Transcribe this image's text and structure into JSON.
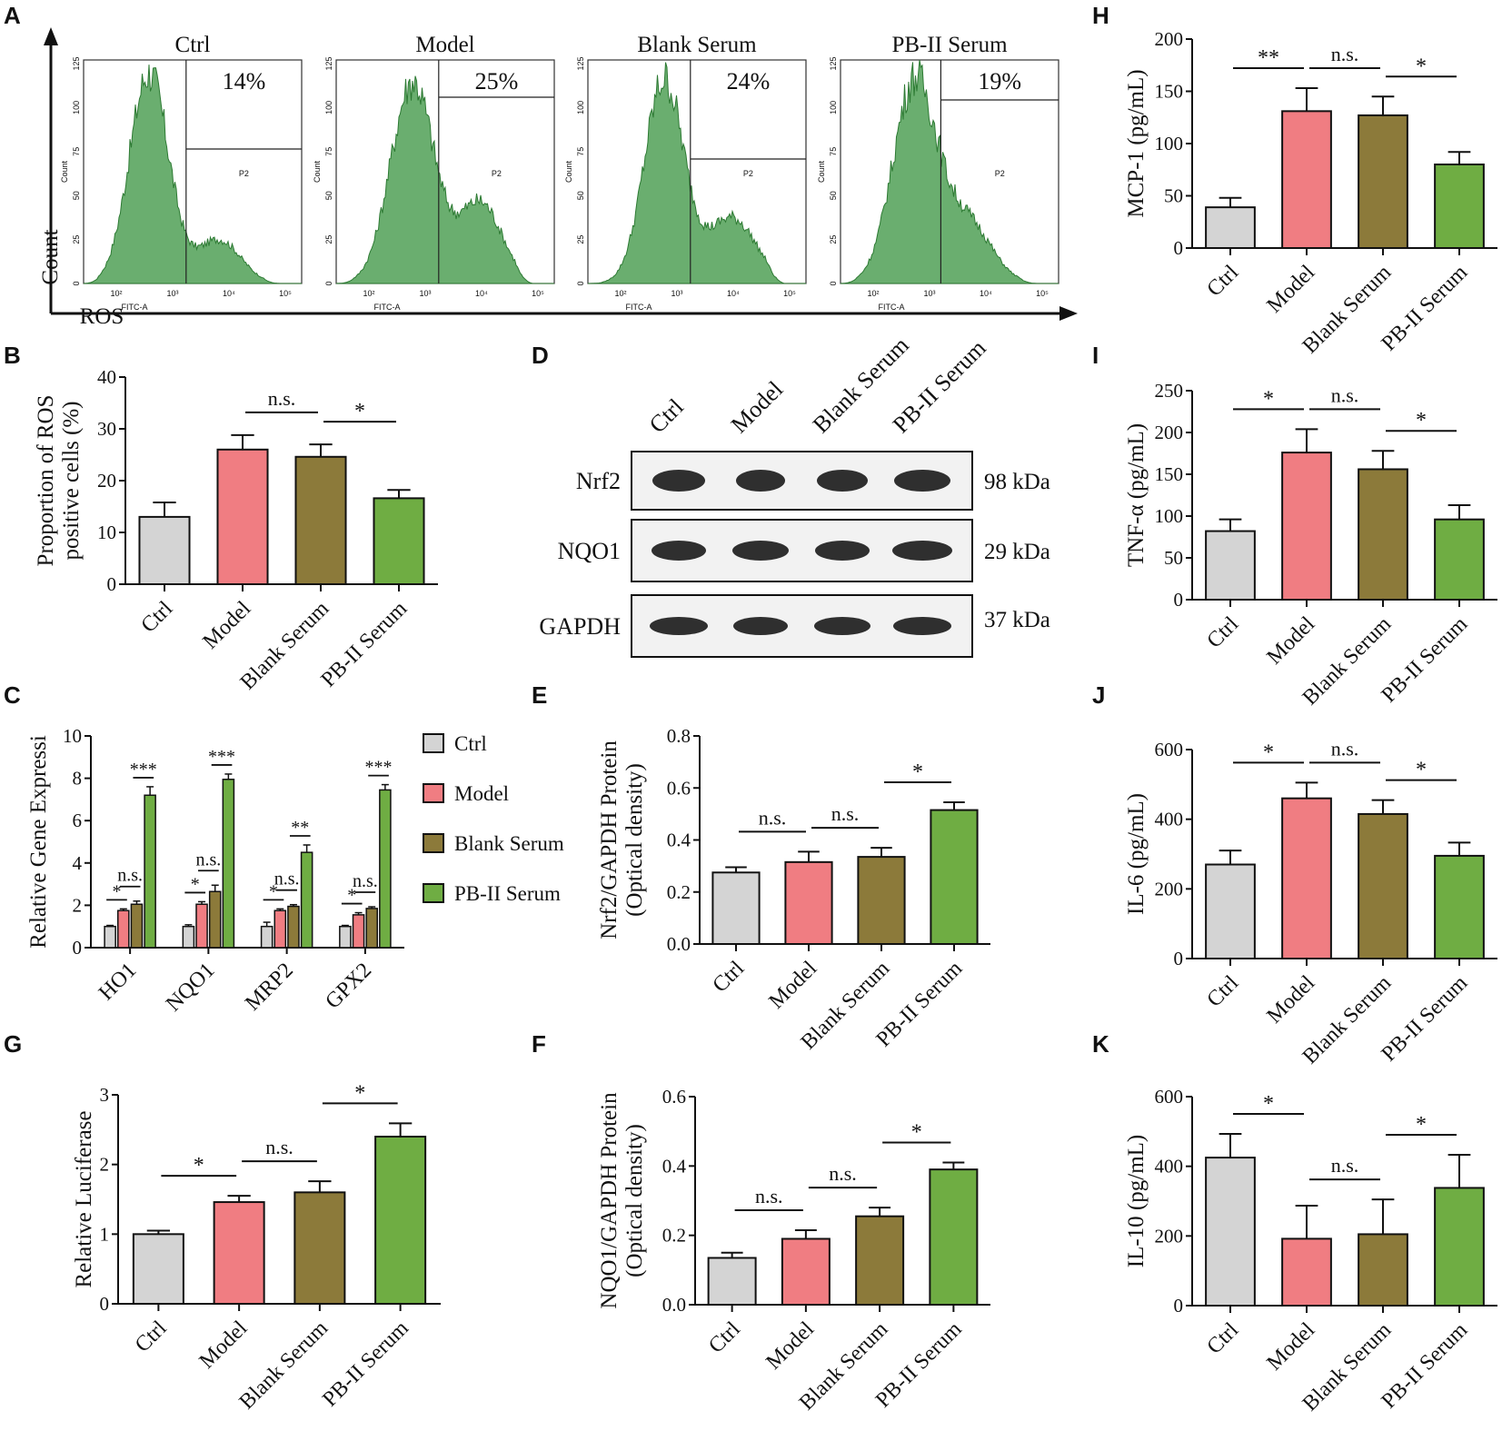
{
  "colors": {
    "ctrl": "#d4d4d4",
    "model": "#f07d82",
    "blank": "#8c7a3a",
    "pb": "#6fad43",
    "hist": "#6aae6f",
    "histline": "#2d7a33"
  },
  "groups": [
    "Ctrl",
    "Model",
    "Blank Serum",
    "PB-II Serum"
  ],
  "panel_labels": [
    "A",
    "B",
    "C",
    "D",
    "E",
    "F",
    "G",
    "H",
    "I",
    "J",
    "K"
  ],
  "flow": {
    "x_axis_label": "ROS",
    "y_axis_label": "Count",
    "subplot_xlabel": "FITC-A",
    "subplot_ylabel": "Count",
    "gate_label": "P2",
    "y_ticks": [
      "125",
      "100",
      "75",
      "50",
      "25",
      "0"
    ],
    "x_ticks": [
      "10²",
      "10³",
      "10⁴",
      "10⁵"
    ],
    "plots": [
      {
        "title": "Ctrl",
        "percent": "14%"
      },
      {
        "title": "Model",
        "percent": "25%"
      },
      {
        "title": "Blank Serum",
        "percent": "24%"
      },
      {
        "title": "PB-II Serum",
        "percent": "19%"
      }
    ]
  },
  "western": {
    "proteins": [
      {
        "name": "Nrf2",
        "size": "98 kDa"
      },
      {
        "name": "NQO1",
        "size": "29 kDa"
      },
      {
        "name": "GAPDH",
        "size": "37 kDa"
      }
    ],
    "lanes": [
      "Ctrl",
      "Model",
      "Blank Serum",
      "PB-II Serum"
    ]
  },
  "chart_data": [
    {
      "id": "B",
      "type": "bar",
      "title": "",
      "ylabel": [
        "Proportion of ROS",
        "positive cells (%)"
      ],
      "categories": [
        "Ctrl",
        "Model",
        "Blank Serum",
        "PB-II Serum"
      ],
      "values": [
        13,
        26,
        24.6,
        16.6
      ],
      "errors": [
        2.8,
        2.8,
        2.4,
        1.6
      ],
      "ylim": [
        0,
        40
      ],
      "yticks": [
        "0",
        "10",
        "20",
        "30",
        "40"
      ],
      "significance": [
        {
          "from": 1,
          "to": 2,
          "label": "n.s."
        },
        {
          "from": 2,
          "to": 3,
          "label": "*"
        }
      ]
    },
    {
      "id": "C",
      "type": "bar",
      "ylabel": [
        "Relative Gene Expressi"
      ],
      "categories": [
        "HO1",
        "NQO1",
        "MRP2",
        "GPX2"
      ],
      "series": [
        {
          "name": "Ctrl",
          "values": [
            1,
            1,
            1,
            1
          ],
          "errors": [
            0.05,
            0.08,
            0.2,
            0.05
          ]
        },
        {
          "name": "Model",
          "values": [
            1.75,
            2.05,
            1.75,
            1.55
          ],
          "errors": [
            0.08,
            0.12,
            0.08,
            0.1
          ]
        },
        {
          "name": "Blank Serum",
          "values": [
            2.05,
            2.65,
            1.95,
            1.85
          ],
          "errors": [
            0.15,
            0.3,
            0.08,
            0.08
          ]
        },
        {
          "name": "PB-II Serum",
          "values": [
            7.2,
            7.95,
            4.5,
            7.45
          ],
          "errors": [
            0.4,
            0.25,
            0.35,
            0.25
          ]
        }
      ],
      "legend": [
        "Ctrl",
        "Model",
        "Blank Serum",
        "PB-II Serum"
      ],
      "ylim": [
        0,
        10
      ],
      "yticks": [
        "0",
        "2",
        "4",
        "6",
        "8",
        "10"
      ],
      "significance": [
        {
          "cat": 0,
          "pair": [
            0,
            1
          ],
          "label": "*"
        },
        {
          "cat": 0,
          "pair": [
            1,
            2
          ],
          "label": "n.s."
        },
        {
          "cat": 0,
          "pair": [
            2,
            3
          ],
          "label": "***"
        },
        {
          "cat": 1,
          "pair": [
            0,
            1
          ],
          "label": "*"
        },
        {
          "cat": 1,
          "pair": [
            1,
            2
          ],
          "label": "n.s."
        },
        {
          "cat": 1,
          "pair": [
            2,
            3
          ],
          "label": "***"
        },
        {
          "cat": 2,
          "pair": [
            0,
            1
          ],
          "label": "*"
        },
        {
          "cat": 2,
          "pair": [
            1,
            2
          ],
          "label": "n.s."
        },
        {
          "cat": 2,
          "pair": [
            2,
            3
          ],
          "label": "**"
        },
        {
          "cat": 3,
          "pair": [
            0,
            1
          ],
          "label": "*"
        },
        {
          "cat": 3,
          "pair": [
            1,
            2
          ],
          "label": "n.s."
        },
        {
          "cat": 3,
          "pair": [
            2,
            3
          ],
          "label": "***"
        }
      ]
    },
    {
      "id": "E",
      "type": "bar",
      "ylabel": [
        "Nrf2/GAPDH Protein",
        "(Optical density)"
      ],
      "categories": [
        "Ctrl",
        "Model",
        "Blank Serum",
        "PB-II Serum"
      ],
      "values": [
        0.275,
        0.315,
        0.335,
        0.515
      ],
      "errors": [
        0.02,
        0.04,
        0.035,
        0.03
      ],
      "ylim": [
        0,
        0.8
      ],
      "yticks": [
        "0.0",
        "0.2",
        "0.4",
        "0.6",
        "0.8"
      ],
      "significance": [
        {
          "from": 0,
          "to": 1,
          "label": "n.s."
        },
        {
          "from": 1,
          "to": 2,
          "label": "n.s."
        },
        {
          "from": 2,
          "to": 3,
          "label": "*"
        }
      ]
    },
    {
      "id": "F",
      "type": "bar",
      "ylabel": [
        "NQO1/GAPDH Protein",
        "(Optical density)"
      ],
      "categories": [
        "Ctrl",
        "Model",
        "Blank Serum",
        "PB-II Serum"
      ],
      "values": [
        0.135,
        0.19,
        0.255,
        0.39
      ],
      "errors": [
        0.015,
        0.025,
        0.025,
        0.02
      ],
      "ylim": [
        0,
        0.6
      ],
      "yticks": [
        "0.0",
        "0.2",
        "0.4",
        "0.6"
      ],
      "significance": [
        {
          "from": 0,
          "to": 1,
          "label": "n.s."
        },
        {
          "from": 1,
          "to": 2,
          "label": "n.s."
        },
        {
          "from": 2,
          "to": 3,
          "label": "*"
        }
      ]
    },
    {
      "id": "G",
      "type": "bar",
      "ylabel": [
        "Relative Luciferase"
      ],
      "categories": [
        "Ctrl",
        "Model",
        "Blank Serum",
        "PB-II Serum"
      ],
      "values": [
        1.0,
        1.46,
        1.6,
        2.4
      ],
      "errors": [
        0.05,
        0.09,
        0.16,
        0.19
      ],
      "ylim": [
        0,
        3
      ],
      "yticks": [
        "0",
        "1",
        "2",
        "3"
      ],
      "significance": [
        {
          "from": 0,
          "to": 1,
          "label": "*"
        },
        {
          "from": 1,
          "to": 2,
          "label": "n.s."
        },
        {
          "from": 2,
          "to": 3,
          "label": "*"
        }
      ]
    },
    {
      "id": "H",
      "type": "bar",
      "ylabel": [
        "MCP-1 (pg/mL)"
      ],
      "categories": [
        "Ctrl",
        "Model",
        "Blank Serum",
        "PB-II Serum"
      ],
      "values": [
        39,
        131,
        127,
        80
      ],
      "errors": [
        9,
        22,
        18,
        12
      ],
      "ylim": [
        0,
        200
      ],
      "yticks": [
        "0",
        "50",
        "100",
        "150",
        "200"
      ],
      "significance": [
        {
          "from": 0,
          "to": 1,
          "label": "**"
        },
        {
          "from": 1,
          "to": 2,
          "label": "n.s."
        },
        {
          "from": 2,
          "to": 3,
          "label": "*"
        }
      ]
    },
    {
      "id": "I",
      "type": "bar",
      "ylabel": [
        "TNF-α (pg/mL)"
      ],
      "categories": [
        "Ctrl",
        "Model",
        "Blank Serum",
        "PB-II Serum"
      ],
      "values": [
        82,
        176,
        156,
        96
      ],
      "errors": [
        14,
        28,
        22,
        17
      ],
      "ylim": [
        0,
        250
      ],
      "yticks": [
        "0",
        "50",
        "100",
        "150",
        "200",
        "250"
      ],
      "significance": [
        {
          "from": 0,
          "to": 1,
          "label": "*"
        },
        {
          "from": 1,
          "to": 2,
          "label": "n.s."
        },
        {
          "from": 2,
          "to": 3,
          "label": "*"
        }
      ]
    },
    {
      "id": "J",
      "type": "bar",
      "ylabel": [
        "IL-6 (pg/mL)"
      ],
      "categories": [
        "Ctrl",
        "Model",
        "Blank Serum",
        "PB-II Serum"
      ],
      "values": [
        270,
        460,
        415,
        295
      ],
      "errors": [
        40,
        45,
        40,
        38
      ],
      "ylim": [
        0,
        600
      ],
      "yticks": [
        "0",
        "200",
        "400",
        "600"
      ],
      "significance": [
        {
          "from": 0,
          "to": 1,
          "label": "*"
        },
        {
          "from": 1,
          "to": 2,
          "label": "n.s."
        },
        {
          "from": 2,
          "to": 3,
          "label": "*"
        }
      ]
    },
    {
      "id": "K",
      "type": "bar",
      "ylabel": [
        "IL-10 (pg/mL)"
      ],
      "categories": [
        "Ctrl",
        "Model",
        "Blank Serum",
        "PB-II Serum"
      ],
      "values": [
        425,
        192,
        205,
        338
      ],
      "errors": [
        68,
        95,
        100,
        95
      ],
      "ylim": [
        0,
        600
      ],
      "yticks": [
        "0",
        "200",
        "400",
        "600"
      ],
      "significance": [
        {
          "from": 0,
          "to": 1,
          "label": "*"
        },
        {
          "from": 1,
          "to": 2,
          "label": "n.s."
        },
        {
          "from": 2,
          "to": 3,
          "label": "*"
        }
      ]
    }
  ]
}
